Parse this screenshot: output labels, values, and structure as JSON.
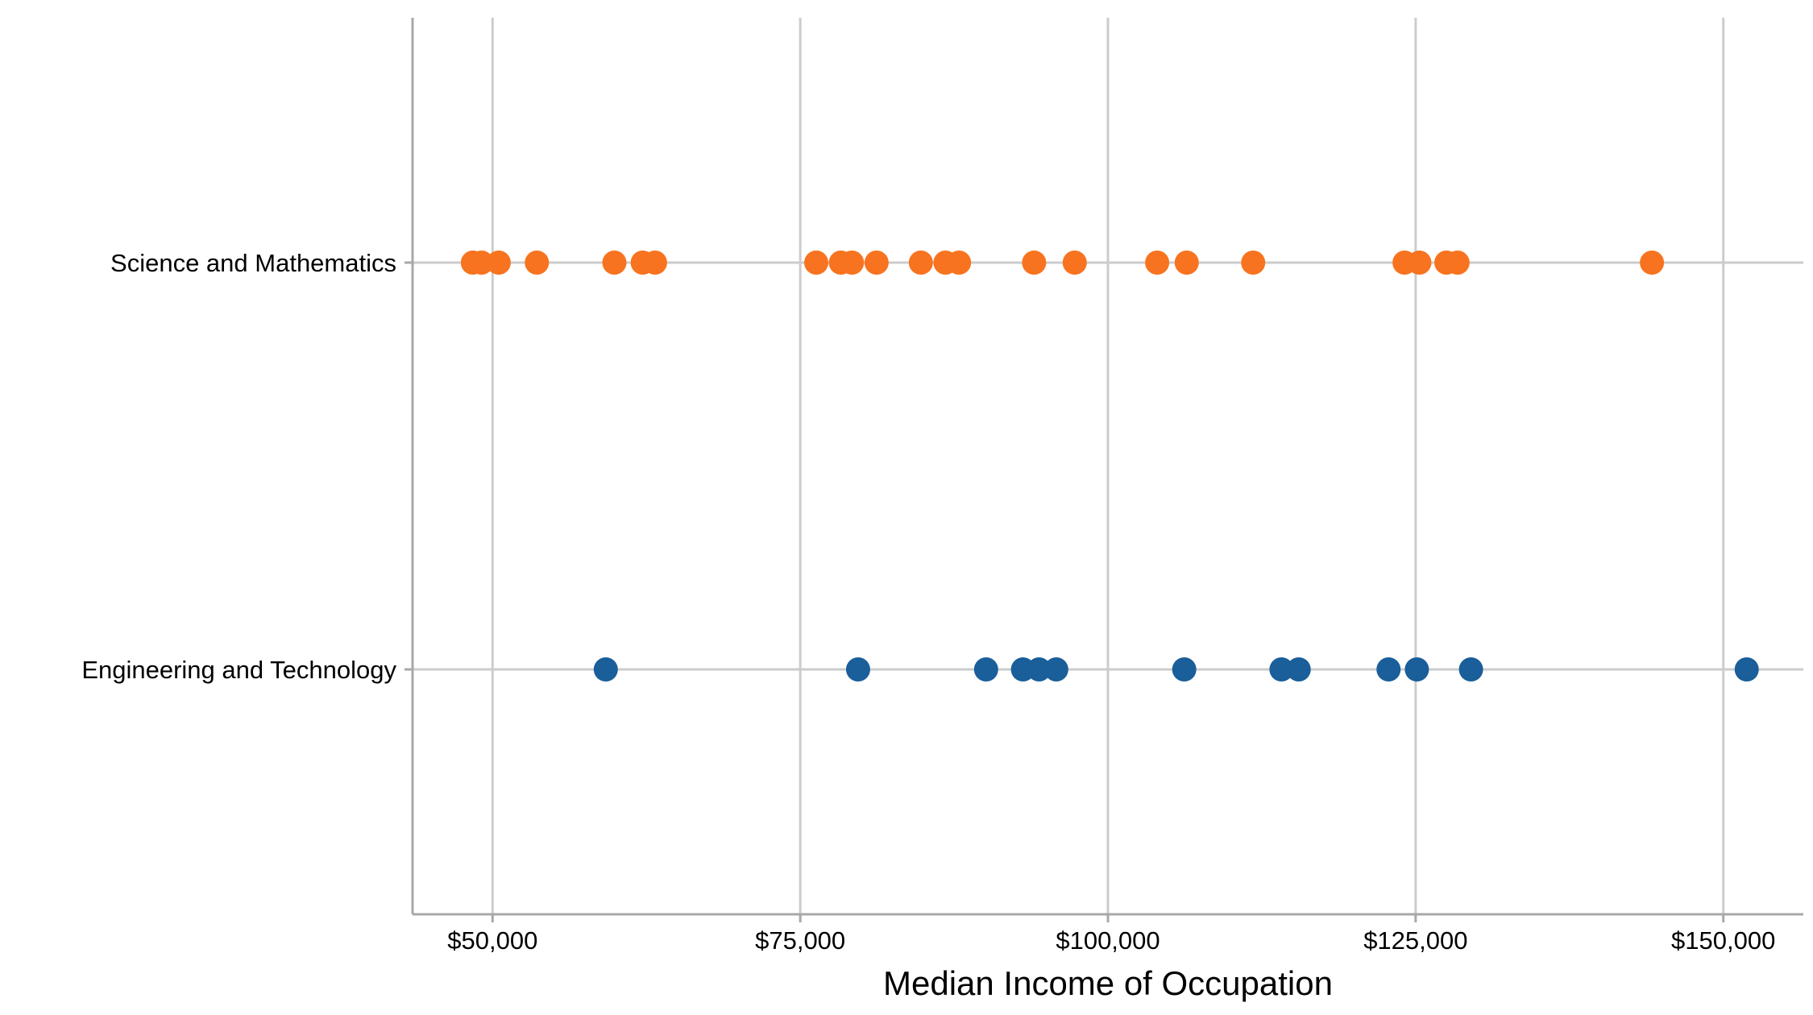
{
  "chart_data": {
    "type": "scatter",
    "title": "",
    "xlabel": "Median Income of Occupation",
    "ylabel": "",
    "xlim": [
      43500,
      156500
    ],
    "x_ticks": [
      50000,
      75000,
      100000,
      125000,
      150000
    ],
    "x_tick_labels": [
      "$50,000",
      "$75,000",
      "$100,000",
      "$125,000",
      "$150,000"
    ],
    "categories": [
      "Science and Mathematics",
      "Engineering and Technology"
    ],
    "grid": true,
    "legend": "none",
    "series": [
      {
        "category": "Science and Mathematics",
        "color": "#F8731F",
        "x": [
          48400,
          49100,
          50500,
          53600,
          59900,
          62200,
          63200,
          76300,
          78300,
          79200,
          81200,
          84800,
          86800,
          87900,
          94000,
          97300,
          104000,
          106400,
          111800,
          124100,
          125300,
          127500,
          128400,
          144200
        ]
      },
      {
        "category": "Engineering and Technology",
        "color": "#1A5E9A",
        "x": [
          59200,
          79700,
          90100,
          93100,
          94400,
          95800,
          106200,
          114100,
          115500,
          122800,
          125100,
          129500,
          151900
        ]
      }
    ]
  }
}
